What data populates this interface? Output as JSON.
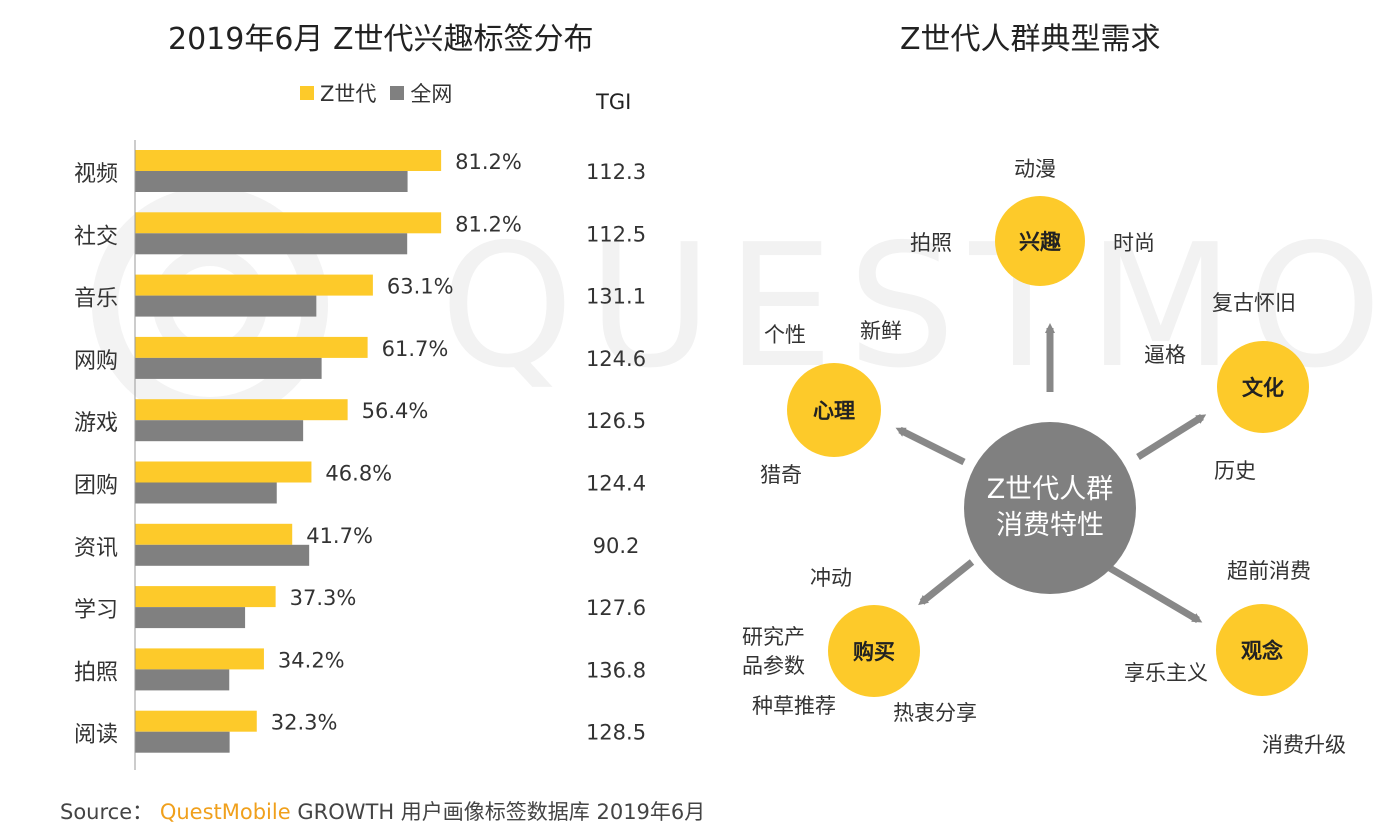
{
  "watermark": "QUESTMOBILE",
  "left_title": "2019年6月 Z世代兴趣标签分布",
  "right_title": "Z世代人群典型需求",
  "legend": {
    "series1": "Z世代",
    "series2": "全网"
  },
  "tgi_header": "TGI",
  "colors": {
    "zgen": "#fdca2a",
    "all": "#808080",
    "accent": "#f0a01c"
  },
  "chart_data": {
    "type": "bar",
    "orientation": "horizontal",
    "title": "2019年6月 Z世代兴趣标签分布",
    "categories": [
      "视频",
      "社交",
      "音乐",
      "网购",
      "游戏",
      "团购",
      "资讯",
      "学习",
      "拍照",
      "阅读"
    ],
    "series": [
      {
        "name": "Z世代",
        "values": [
          81.2,
          81.2,
          63.1,
          61.7,
          56.4,
          46.8,
          41.7,
          37.3,
          34.2,
          32.3
        ],
        "labels": [
          "81.2%",
          "81.2%",
          "63.1%",
          "61.7%",
          "56.4%",
          "46.8%",
          "41.7%",
          "37.3%",
          "34.2%",
          "32.3%"
        ]
      },
      {
        "name": "全网",
        "values": [
          72.3,
          72.2,
          48.1,
          49.5,
          44.6,
          37.6,
          46.2,
          29.2,
          25.0,
          25.1
        ]
      }
    ],
    "tgi": [
      "112.3",
      "112.5",
      "131.1",
      "124.6",
      "126.5",
      "124.4",
      "90.2",
      "127.6",
      "136.8",
      "128.5"
    ],
    "xlim": [
      0,
      100
    ]
  },
  "mindmap": {
    "center_line1": "Z世代人群",
    "center_line2": "消费特性",
    "nodes": {
      "interest": {
        "label": "兴趣",
        "words": [
          "动漫",
          "拍照",
          "时尚"
        ]
      },
      "culture": {
        "label": "文化",
        "words": [
          "复古怀旧",
          "逼格",
          "历史"
        ]
      },
      "psychology": {
        "label": "心理",
        "words": [
          "个性",
          "新鲜",
          "猎奇"
        ]
      },
      "purchase": {
        "label": "购买",
        "words": [
          "冲动",
          "研究产",
          "品参数",
          "种草推荐",
          "热衷分享"
        ]
      },
      "concept": {
        "label": "观念",
        "words": [
          "超前消费",
          "享乐主义",
          "消费升级"
        ]
      }
    }
  },
  "source": {
    "prefix": "Source：",
    "brand": "QuestMobile",
    "rest": "GROWTH 用户画像标签数据库 2019年6月"
  }
}
